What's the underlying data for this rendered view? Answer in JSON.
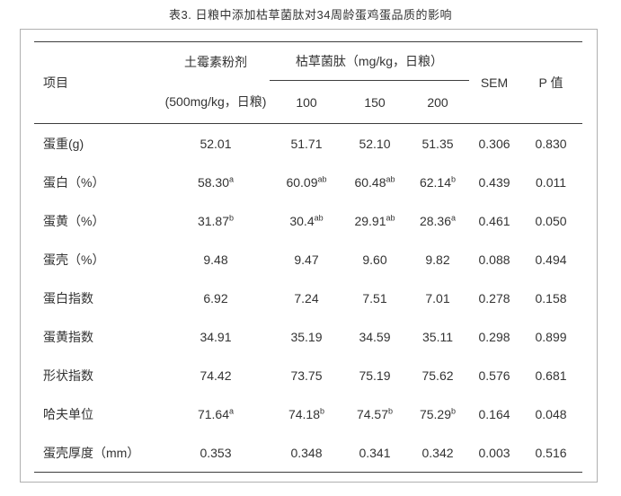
{
  "title": "表3. 日粮中添加枯草菌肽对34周龄蛋鸡蛋品质的影响",
  "table": {
    "header": {
      "item_label": "项目",
      "control_name": "土霉素粉剂",
      "control_dose": "(500mg/kg，日粮)",
      "treatment_name": "枯草菌肽（mg/kg，日粮）",
      "treatment_levels": [
        "100",
        "150",
        "200"
      ],
      "sem_label": "SEM",
      "p_label": "P 值"
    },
    "rows": [
      {
        "label": "蛋重(g)",
        "cells": [
          [
            "52.01",
            ""
          ],
          [
            "51.71",
            ""
          ],
          [
            "52.10",
            ""
          ],
          [
            "51.35",
            ""
          ],
          [
            "0.306",
            ""
          ],
          [
            "0.830",
            ""
          ]
        ]
      },
      {
        "label": "蛋白（%）",
        "cells": [
          [
            "58.30",
            "a"
          ],
          [
            "60.09",
            "ab"
          ],
          [
            "60.48",
            "ab"
          ],
          [
            "62.14",
            "b"
          ],
          [
            "0.439",
            ""
          ],
          [
            "0.011",
            ""
          ]
        ]
      },
      {
        "label": "蛋黄（%）",
        "cells": [
          [
            "31.87",
            "b"
          ],
          [
            "30.4",
            "ab"
          ],
          [
            "29.91",
            "ab"
          ],
          [
            "28.36",
            "a"
          ],
          [
            "0.461",
            ""
          ],
          [
            "0.050",
            ""
          ]
        ]
      },
      {
        "label": "蛋壳（%）",
        "cells": [
          [
            "9.48",
            ""
          ],
          [
            "9.47",
            ""
          ],
          [
            "9.60",
            ""
          ],
          [
            "9.82",
            ""
          ],
          [
            "0.088",
            ""
          ],
          [
            "0.494",
            ""
          ]
        ]
      },
      {
        "label": "蛋白指数",
        "cells": [
          [
            "6.92",
            ""
          ],
          [
            "7.24",
            ""
          ],
          [
            "7.51",
            ""
          ],
          [
            "7.01",
            ""
          ],
          [
            "0.278",
            ""
          ],
          [
            "0.158",
            ""
          ]
        ]
      },
      {
        "label": "蛋黄指数",
        "cells": [
          [
            "34.91",
            ""
          ],
          [
            "35.19",
            ""
          ],
          [
            "34.59",
            ""
          ],
          [
            "35.11",
            ""
          ],
          [
            "0.298",
            ""
          ],
          [
            "0.899",
            ""
          ]
        ]
      },
      {
        "label": "形状指数",
        "cells": [
          [
            "74.42",
            ""
          ],
          [
            "73.75",
            ""
          ],
          [
            "75.19",
            ""
          ],
          [
            "75.62",
            ""
          ],
          [
            "0.576",
            ""
          ],
          [
            "0.681",
            ""
          ]
        ]
      },
      {
        "label": "哈夫单位",
        "cells": [
          [
            "71.64",
            "a"
          ],
          [
            "74.18",
            "b"
          ],
          [
            "74.57",
            "b"
          ],
          [
            "75.29",
            "b"
          ],
          [
            "0.164",
            ""
          ],
          [
            "0.048",
            ""
          ]
        ]
      },
      {
        "label": "蛋壳厚度（mm）",
        "cells": [
          [
            "0.353",
            ""
          ],
          [
            "0.348",
            ""
          ],
          [
            "0.341",
            ""
          ],
          [
            "0.342",
            ""
          ],
          [
            "0.003",
            ""
          ],
          [
            "0.516",
            ""
          ]
        ]
      }
    ]
  },
  "colors": {
    "rule": "#3d3d3d",
    "text": "#333333",
    "frame_border": "#b0b0b0",
    "background": "#ffffff"
  }
}
